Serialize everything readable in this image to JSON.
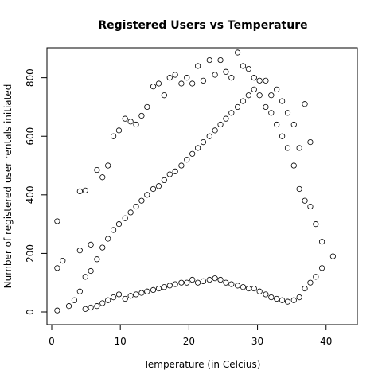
{
  "chart_data": {
    "type": "scatter",
    "title": "Registered Users vs Temperature",
    "xlabel": "Temperature (in Celcius)",
    "ylabel": "Number of registered user rentals initiated",
    "xlim": [
      0,
      42
    ],
    "ylim": [
      0,
      886
    ],
    "x_ticks": [
      0,
      10,
      20,
      30,
      40
    ],
    "y_ticks": [
      0,
      200,
      400,
      600,
      800
    ],
    "grid": false,
    "legend": "none",
    "marker": "open-circle",
    "point_color": "#000000",
    "series": [
      {
        "x": [
          0.8,
          0.8,
          0.8,
          1.6,
          2.5,
          3.3,
          4.1,
          4.1,
          4.1,
          4.9,
          4.9,
          4.9,
          5.7,
          5.7,
          5.7,
          6.6,
          6.6,
          6.6,
          7.4,
          7.4,
          7.4,
          8.2,
          8.2,
          8.2,
          9.0,
          9.0,
          9.0,
          9.8,
          9.8,
          9.8,
          10.7,
          10.7,
          10.7,
          11.5,
          11.5,
          11.5,
          12.3,
          12.3,
          12.3,
          13.1,
          13.1,
          13.1,
          13.9,
          13.9,
          13.9,
          14.8,
          14.8,
          14.8,
          15.6,
          15.6,
          15.6,
          16.4,
          16.4,
          16.4,
          17.2,
          17.2,
          17.2,
          18.0,
          18.0,
          18.0,
          18.9,
          18.9,
          18.9,
          19.7,
          19.7,
          19.7,
          20.5,
          20.5,
          20.5,
          21.3,
          21.3,
          21.3,
          22.1,
          22.1,
          22.1,
          23.0,
          23.0,
          23.0,
          23.8,
          23.8,
          23.8,
          24.6,
          24.6,
          24.6,
          25.4,
          25.4,
          25.4,
          26.2,
          26.2,
          26.2,
          27.1,
          27.1,
          27.1,
          27.9,
          27.9,
          27.9,
          28.7,
          28.7,
          28.7,
          29.5,
          29.5,
          29.5,
          30.3,
          30.3,
          30.3,
          31.2,
          31.2,
          31.2,
          32.0,
          32.0,
          32.0,
          32.8,
          32.8,
          32.8,
          33.6,
          33.6,
          33.6,
          34.4,
          34.4,
          34.4,
          35.3,
          35.3,
          35.3,
          36.1,
          36.1,
          36.1,
          36.9,
          36.9,
          36.9,
          37.7,
          37.7,
          37.7,
          38.5,
          38.5,
          39.4,
          39.4,
          41.0
        ],
        "y": [
          5,
          150,
          310,
          175,
          20,
          40,
          70,
          210,
          412,
          10,
          120,
          415,
          15,
          140,
          230,
          20,
          180,
          485,
          30,
          220,
          460,
          40,
          250,
          500,
          50,
          280,
          600,
          60,
          300,
          620,
          45,
          320,
          660,
          55,
          340,
          650,
          60,
          360,
          640,
          65,
          380,
          670,
          70,
          400,
          700,
          75,
          420,
          770,
          80,
          430,
          780,
          85,
          450,
          740,
          90,
          470,
          800,
          95,
          480,
          810,
          100,
          500,
          780,
          100,
          520,
          800,
          110,
          540,
          780,
          100,
          560,
          840,
          105,
          580,
          790,
          110,
          600,
          860,
          115,
          620,
          810,
          110,
          640,
          860,
          100,
          660,
          820,
          95,
          680,
          800,
          90,
          700,
          886,
          85,
          720,
          840,
          80,
          740,
          830,
          80,
          760,
          800,
          70,
          740,
          790,
          60,
          700,
          790,
          50,
          680,
          740,
          45,
          640,
          760,
          40,
          600,
          720,
          35,
          560,
          680,
          40,
          500,
          640,
          50,
          420,
          560,
          80,
          380,
          710,
          100,
          360,
          580,
          120,
          300,
          150,
          240,
          190
        ]
      }
    ]
  }
}
